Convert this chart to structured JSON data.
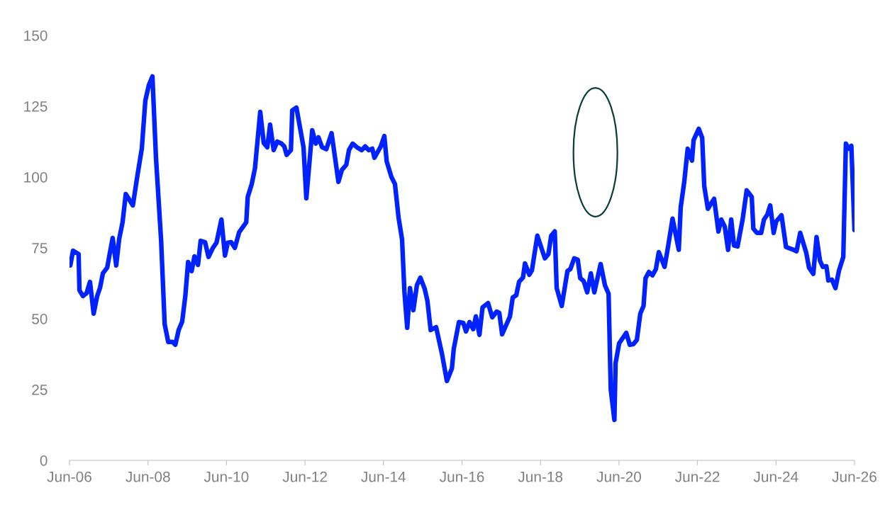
{
  "chart_data": {
    "type": "line",
    "x": [
      "2006-06-09",
      "2006-07-04",
      "2006-08-25",
      "2006-09-02",
      "2006-10-04",
      "2006-11-07",
      "2006-12-09",
      "2007-01-12",
      "2007-02-14",
      "2007-03-13",
      "2007-04-08",
      "2007-05-18",
      "2007-06-06",
      "2007-07-08",
      "2007-08-10",
      "2007-09-06",
      "2007-10-08",
      "2007-11-07",
      "2008-01-12",
      "2008-02-21",
      "2008-04-04",
      "2008-05-07",
      "2008-06-09",
      "2008-07-12",
      "2008-08-14",
      "2008-10-01",
      "2008-11-03",
      "2008-12-06",
      "2009-01-15",
      "2009-02-10",
      "2009-03-13",
      "2009-04-15",
      "2009-05-14",
      "2009-06-09",
      "2009-07-12",
      "2009-08-07",
      "2009-09-09",
      "2009-10-04",
      "2009-11-14",
      "2009-12-16",
      "2010-01-26",
      "2010-02-28",
      "2010-04-15",
      "2010-05-18",
      "2010-06-13",
      "2010-07-15",
      "2010-08-18",
      "2010-09-27",
      "2010-12-02",
      "2010-12-16",
      "2011-01-22",
      "2011-02-21",
      "2011-04-11",
      "2011-05-14",
      "2011-06-16",
      "2011-07-12",
      "2011-08-14",
      "2011-09-16",
      "2011-10-26",
      "2011-11-21",
      "2011-12-13",
      "2012-01-22",
      "2012-02-03",
      "2012-03-13",
      "2012-05-18",
      "2012-06-13",
      "2012-08-07",
      "2012-09-09",
      "2012-10-04",
      "2012-11-07",
      "2012-12-16",
      "2013-02-03",
      "2013-04-08",
      "2013-05-10",
      "2013-06-20",
      "2013-07-15",
      "2013-08-18",
      "2013-09-27",
      "2013-11-10",
      "2013-12-13",
      "2014-01-15",
      "2014-02-17",
      "2014-03-09",
      "2014-05-07",
      "2014-06-09",
      "2014-07-01",
      "2014-08-14",
      "2014-09-16",
      "2014-10-19",
      "2014-11-21",
      "2014-12-13",
      "2015-01-08",
      "2015-02-03",
      "2015-03-06",
      "2015-04-08",
      "2015-05-10",
      "2015-06-20",
      "2015-07-15",
      "2015-08-14",
      "2015-10-04",
      "2015-11-28",
      "2016-01-12",
      "2016-02-28",
      "2016-03-16",
      "2016-05-03",
      "2016-06-13",
      "2016-07-08",
      "2016-08-10",
      "2016-09-13",
      "2016-10-08",
      "2016-11-10",
      "2016-12-09",
      "2017-01-29",
      "2017-03-09",
      "2017-04-19",
      "2017-05-14",
      "2017-06-09",
      "2017-08-21",
      "2017-09-16",
      "2017-10-19",
      "2017-11-14",
      "2017-12-20",
      "2018-01-08",
      "2018-02-17",
      "2018-03-13",
      "2018-05-03",
      "2018-07-12",
      "2018-08-14",
      "2018-09-09",
      "2018-10-12",
      "2018-10-30",
      "2018-12-16",
      "2019-02-07",
      "2019-03-06",
      "2019-04-11",
      "2019-05-14",
      "2019-06-06",
      "2019-07-08",
      "2019-08-10",
      "2019-09-13",
      "2019-10-15",
      "2019-12-13",
      "2020-01-22",
      "2020-02-25",
      "2020-03-16",
      "2020-04-19",
      "2020-04-30",
      "2020-06-02",
      "2020-08-07",
      "2020-09-09",
      "2020-10-12",
      "2020-11-14",
      "2020-12-16",
      "2021-01-15",
      "2021-02-03",
      "2021-03-06",
      "2021-04-08",
      "2021-05-10",
      "2021-06-06",
      "2021-07-30",
      "2021-09-02",
      "2021-10-12",
      "2021-12-09",
      "2021-12-27",
      "2022-01-29",
      "2022-03-02",
      "2022-04-11",
      "2022-04-26",
      "2022-06-13",
      "2022-07-15",
      "2022-08-03",
      "2022-09-06",
      "2022-10-08",
      "2022-11-03",
      "2022-12-13",
      "2023-01-08",
      "2023-02-10",
      "2023-03-13",
      "2023-04-11",
      "2023-05-07",
      "2023-06-09",
      "2023-07-26",
      "2023-09-02",
      "2023-10-19",
      "2023-11-03",
      "2023-12-06",
      "2024-01-15",
      "2024-02-10",
      "2024-03-13",
      "2024-04-08",
      "2024-05-10",
      "2024-06-02",
      "2024-07-22",
      "2024-09-02",
      "2024-10-30",
      "2024-12-09",
      "2025-01-12",
      "2025-03-09",
      "2025-04-04",
      "2025-05-14",
      "2025-06-13",
      "2025-07-15",
      "2025-08-10",
      "2025-09-13",
      "2025-10-01",
      "2025-11-03",
      "2025-12-06",
      "2026-01-08",
      "2026-02-17",
      "2026-03-13",
      "2026-04-08",
      "2026-05-03",
      "2026-06-01"
    ],
    "series": [
      {
        "color": "#0022ff",
        "values": [
          68.8,
          74,
          72.8,
          60,
          58,
          59,
          63,
          51.8,
          58,
          61,
          66,
          68,
          72,
          78.5,
          68.8,
          78,
          84,
          94,
          90,
          100,
          110,
          127,
          132.5,
          135.5,
          106.8,
          77.5,
          48,
          41.8,
          41.8,
          40.8,
          46,
          49,
          58,
          70,
          66.8,
          72,
          69,
          77.5,
          77,
          71.8,
          75,
          76.8,
          85,
          72.3,
          76.8,
          77,
          75,
          80.5,
          84,
          93,
          97.5,
          103,
          123,
          112,
          110.5,
          118.5,
          109.5,
          112.5,
          111.8,
          110.8,
          107.8,
          109.5,
          123.5,
          124.5,
          110.5,
          92.5,
          116.5,
          111.8,
          114,
          110.5,
          109.8,
          115.5,
          98.3,
          102.5,
          104.3,
          109.5,
          111.8,
          110.5,
          109.5,
          110.8,
          109.5,
          110,
          106.8,
          110.8,
          114.5,
          105.5,
          100,
          97.5,
          85.8,
          78,
          59.5,
          46.8,
          60.8,
          53,
          61.8,
          64.5,
          60.5,
          56.3,
          46,
          47,
          37.5,
          28,
          32.5,
          39.3,
          48.8,
          48.5,
          45.5,
          48.8,
          46.3,
          50.8,
          44.3,
          54,
          55.5,
          50.5,
          52.5,
          52,
          44.5,
          50.8,
          57.5,
          58.3,
          63,
          64.5,
          69.5,
          65.5,
          67,
          79.3,
          71.3,
          72.8,
          79.3,
          80.8,
          60.8,
          54.5,
          66.8,
          67.5,
          71.3,
          70.8,
          64.3,
          63.3,
          59.3,
          66,
          59.3,
          69.3,
          61.8,
          58.8,
          25,
          14.3,
          34.3,
          41.3,
          45,
          40.8,
          41,
          42.5,
          51.8,
          54.5,
          64.3,
          66.5,
          65.3,
          67.5,
          73.5,
          68.3,
          75.8,
          85.3,
          74.3,
          89.3,
          98.3,
          110,
          105.8,
          113,
          117,
          113.8,
          96.8,
          88.8,
          90.8,
          92.3,
          80.8,
          85,
          82.5,
          74.3,
          85,
          75.8,
          75.5,
          85,
          95.3,
          93,
          81.8,
          80.3,
          80.3,
          85,
          86.8,
          90,
          80.3,
          84.3,
          86.5,
          75.3,
          74.5,
          73.8,
          80.3,
          73.3,
          68,
          65.8,
          78.8,
          70.5,
          68.3,
          68.5,
          63.5,
          63.8,
          60.8,
          67,
          71.8,
          111.8,
          110,
          111,
          81.3
        ]
      }
    ],
    "xlim": [
      "2006-06-01",
      "2026-06-01"
    ],
    "xticks": [
      {
        "value": "2006-06-01",
        "label": "Jun-06"
      },
      {
        "value": "2008-06-01",
        "label": "Jun-08"
      },
      {
        "value": "2010-06-01",
        "label": "Jun-10"
      },
      {
        "value": "2012-06-01",
        "label": "Jun-12"
      },
      {
        "value": "2014-06-01",
        "label": "Jun-14"
      },
      {
        "value": "2016-06-01",
        "label": "Jun-16"
      },
      {
        "value": "2018-06-01",
        "label": "Jun-18"
      },
      {
        "value": "2020-06-01",
        "label": "Jun-20"
      },
      {
        "value": "2022-06-01",
        "label": "Jun-22"
      },
      {
        "value": "2024-06-01",
        "label": "Jun-24"
      },
      {
        "value": "2026-06-01",
        "label": "Jun-26"
      }
    ],
    "ylim": [
      0,
      150
    ],
    "yticks": [
      0,
      25,
      50,
      75,
      100,
      125,
      150
    ],
    "grid": false,
    "marker": "none",
    "line_style": "solid"
  }
}
